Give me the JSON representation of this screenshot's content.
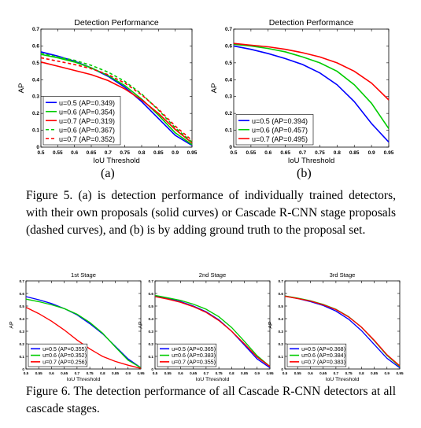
{
  "captions": {
    "fig5_a": "(a)",
    "fig5_b": "(b)",
    "fig5": "Figure 5. (a) is detection performance of individually trained detectors, with their own proposals (solid curves) or Cascade R-CNN stage proposals (dashed curves), and (b) is by adding ground truth to the proposal set.",
    "fig6": "Figure 6. The detection performance of all Cascade R-CNN detectors at all cascade stages."
  },
  "chart_data": [
    {
      "type": "line",
      "title": "Detection Performance",
      "xlabel": "IoU Threshold",
      "ylabel": "AP",
      "xlim": [
        0.5,
        0.95
      ],
      "ylim": [
        0,
        0.7
      ],
      "xticks": [
        "0.5",
        "0.55",
        "0.6",
        "0.65",
        "0.7",
        "0.75",
        "0.8",
        "0.85",
        "0.9",
        "0.95"
      ],
      "yticks": [
        "0",
        "0.1",
        "0.2",
        "0.3",
        "0.4",
        "0.5",
        "0.6",
        "0.7"
      ],
      "legend_position": "bottom-left",
      "x": [
        0.5,
        0.55,
        0.6,
        0.65,
        0.7,
        0.75,
        0.8,
        0.85,
        0.9,
        0.95
      ],
      "series": [
        {
          "name": "u=0.5 (AP=0.349)",
          "color": "#0000ff",
          "dash": false,
          "values": [
            0.565,
            0.54,
            0.51,
            0.47,
            0.42,
            0.355,
            0.27,
            0.17,
            0.07,
            0.01
          ]
        },
        {
          "name": "u=0.6 (AP=0.354)",
          "color": "#00cc00",
          "dash": false,
          "values": [
            0.55,
            0.53,
            0.505,
            0.47,
            0.425,
            0.365,
            0.285,
            0.19,
            0.085,
            0.015
          ]
        },
        {
          "name": "u=0.7 (AP=0.319)",
          "color": "#ff0000",
          "dash": false,
          "values": [
            0.505,
            0.48,
            0.455,
            0.43,
            0.395,
            0.345,
            0.28,
            0.2,
            0.105,
            0.025
          ]
        },
        {
          "name": "u=0.6 (AP=0.367)",
          "color": "#00cc00",
          "dash": true,
          "values": [
            0.555,
            0.535,
            0.515,
            0.485,
            0.445,
            0.39,
            0.315,
            0.22,
            0.115,
            0.03
          ]
        },
        {
          "name": "u=0.7 (AP=0.352)",
          "color": "#ff0000",
          "dash": true,
          "values": [
            0.53,
            0.51,
            0.49,
            0.465,
            0.43,
            0.38,
            0.31,
            0.225,
            0.125,
            0.04
          ]
        }
      ]
    },
    {
      "type": "line",
      "title": "Detection Performance",
      "xlabel": "IoU Threshold",
      "ylabel": "AP",
      "xlim": [
        0.5,
        0.95
      ],
      "ylim": [
        0,
        0.7
      ],
      "xticks": [
        "0.5",
        "0.55",
        "0.6",
        "0.65",
        "0.7",
        "0.75",
        "0.8",
        "0.85",
        "0.9",
        "0.95"
      ],
      "yticks": [
        "0",
        "0.1",
        "0.2",
        "0.3",
        "0.4",
        "0.5",
        "0.6",
        "0.7"
      ],
      "legend_position": "bottom-left",
      "x": [
        0.5,
        0.55,
        0.6,
        0.65,
        0.7,
        0.75,
        0.8,
        0.85,
        0.9,
        0.95
      ],
      "series": [
        {
          "name": "u=0.5 (AP=0.394)",
          "color": "#0000ff",
          "dash": false,
          "values": [
            0.6,
            0.58,
            0.555,
            0.525,
            0.49,
            0.44,
            0.37,
            0.27,
            0.14,
            0.03
          ]
        },
        {
          "name": "u=0.6 (AP=0.457)",
          "color": "#00cc00",
          "dash": false,
          "values": [
            0.61,
            0.6,
            0.585,
            0.565,
            0.535,
            0.5,
            0.45,
            0.37,
            0.26,
            0.11
          ]
        },
        {
          "name": "u=0.7 (AP=0.495)",
          "color": "#ff0000",
          "dash": false,
          "values": [
            0.615,
            0.605,
            0.595,
            0.58,
            0.56,
            0.535,
            0.5,
            0.45,
            0.38,
            0.28
          ]
        }
      ]
    },
    {
      "type": "line",
      "title": "1st Stage",
      "xlabel": "IoU Threshold",
      "ylabel": "AP",
      "xlim": [
        0.5,
        0.95
      ],
      "ylim": [
        0,
        0.7
      ],
      "xticks": [
        "0.5",
        "0.55",
        "0.6",
        "0.65",
        "0.7",
        "0.75",
        "0.8",
        "0.85",
        "0.9",
        "0.95"
      ],
      "yticks": [
        "0",
        "0.1",
        "0.2",
        "0.3",
        "0.4",
        "0.5",
        "0.6",
        "0.7"
      ],
      "legend_position": "bottom-left",
      "x": [
        0.5,
        0.55,
        0.6,
        0.65,
        0.7,
        0.75,
        0.8,
        0.85,
        0.9,
        0.95
      ],
      "series": [
        {
          "name": "u=0.5 (AP=0.355)",
          "color": "#0000ff",
          "dash": false,
          "values": [
            0.575,
            0.55,
            0.52,
            0.48,
            0.43,
            0.36,
            0.28,
            0.18,
            0.08,
            0.01
          ]
        },
        {
          "name": "u=0.6 (AP=0.352)",
          "color": "#00cc00",
          "dash": false,
          "values": [
            0.555,
            0.535,
            0.51,
            0.48,
            0.435,
            0.37,
            0.285,
            0.175,
            0.07,
            0.01
          ]
        },
        {
          "name": "u=0.7 (AP=0.256)",
          "color": "#ff0000",
          "dash": false,
          "values": [
            0.49,
            0.44,
            0.38,
            0.31,
            0.23,
            0.16,
            0.1,
            0.06,
            0.03,
            0.005
          ]
        }
      ]
    },
    {
      "type": "line",
      "title": "2nd Stage",
      "xlabel": "IoU Threshold",
      "ylabel": "AP",
      "xlim": [
        0.5,
        0.95
      ],
      "ylim": [
        0,
        0.7
      ],
      "xticks": [
        "0.5",
        "0.55",
        "0.6",
        "0.65",
        "0.7",
        "0.75",
        "0.8",
        "0.85",
        "0.9",
        "0.95"
      ],
      "yticks": [
        "0",
        "0.1",
        "0.2",
        "0.3",
        "0.4",
        "0.5",
        "0.6",
        "0.7"
      ],
      "legend_position": "bottom-left",
      "x": [
        0.5,
        0.55,
        0.6,
        0.65,
        0.7,
        0.75,
        0.8,
        0.85,
        0.9,
        0.95
      ],
      "series": [
        {
          "name": "u=0.5 (AP=0.365)",
          "color": "#0000ff",
          "dash": false,
          "values": [
            0.58,
            0.56,
            0.535,
            0.5,
            0.455,
            0.39,
            0.3,
            0.19,
            0.08,
            0.01
          ]
        },
        {
          "name": "u=0.6 (AP=0.383)",
          "color": "#00cc00",
          "dash": false,
          "values": [
            0.585,
            0.565,
            0.545,
            0.515,
            0.475,
            0.415,
            0.33,
            0.22,
            0.105,
            0.02
          ]
        },
        {
          "name": "u=0.7 (AP=0.355)",
          "color": "#ff0000",
          "dash": false,
          "values": [
            0.575,
            0.555,
            0.53,
            0.495,
            0.45,
            0.385,
            0.3,
            0.2,
            0.095,
            0.02
          ]
        }
      ]
    },
    {
      "type": "line",
      "title": "3rd Stage",
      "xlabel": "IoU Threshold",
      "ylabel": "AP",
      "xlim": [
        0.5,
        0.95
      ],
      "ylim": [
        0,
        0.7
      ],
      "xticks": [
        "0.5",
        "0.55",
        "0.6",
        "0.65",
        "0.7",
        "0.75",
        "0.8",
        "0.85",
        "0.9",
        "0.95"
      ],
      "yticks": [
        "0",
        "0.1",
        "0.2",
        "0.3",
        "0.4",
        "0.5",
        "0.6",
        "0.7"
      ],
      "legend_position": "bottom-left",
      "x": [
        0.5,
        0.55,
        0.6,
        0.65,
        0.7,
        0.75,
        0.8,
        0.85,
        0.9,
        0.95
      ],
      "series": [
        {
          "name": "u=0.5 (AP=0.368)",
          "color": "#0000ff",
          "dash": false,
          "values": [
            0.58,
            0.56,
            0.535,
            0.505,
            0.46,
            0.395,
            0.305,
            0.195,
            0.085,
            0.01
          ]
        },
        {
          "name": "u=0.6 (AP=0.384)",
          "color": "#00cc00",
          "dash": false,
          "values": [
            0.58,
            0.563,
            0.542,
            0.513,
            0.474,
            0.415,
            0.332,
            0.225,
            0.108,
            0.02
          ]
        },
        {
          "name": "u=0.7 (AP=0.383)",
          "color": "#ff0000",
          "dash": false,
          "values": [
            0.578,
            0.56,
            0.54,
            0.51,
            0.472,
            0.413,
            0.333,
            0.228,
            0.113,
            0.025
          ]
        }
      ]
    }
  ]
}
